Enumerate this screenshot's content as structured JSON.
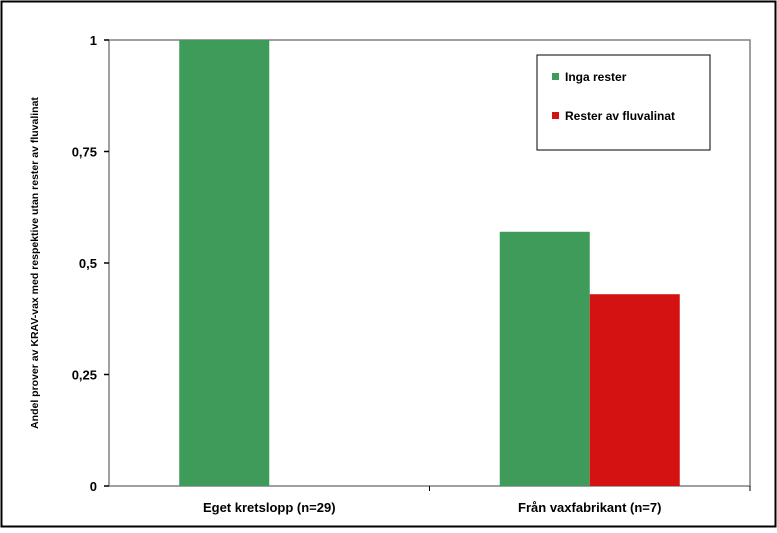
{
  "chart_data": {
    "type": "bar",
    "categories": [
      "Eget kretslopp (n=29)",
      "Från vaxfabrikant (n=7)"
    ],
    "series": [
      {
        "name": "Inga rester",
        "values": [
          1.0,
          0.57
        ],
        "color": "#3e9b5a"
      },
      {
        "name": "Rester av fluvalinat",
        "values": [
          0.0,
          0.43
        ],
        "color": "#d41212"
      }
    ],
    "ylabel": "Andel prover av KRAV-vax med respektive utan rester av fluvalinat",
    "xlabel": "",
    "title": "",
    "yticks": [
      {
        "value": 0,
        "label": "0"
      },
      {
        "value": 0.25,
        "label": "0,25"
      },
      {
        "value": 0.5,
        "label": "0,5"
      },
      {
        "value": 0.75,
        "label": "0,75"
      },
      {
        "value": 1,
        "label": "1"
      }
    ],
    "ylim": [
      0,
      1
    ],
    "grid": false,
    "legend_position": "top-right",
    "colors": {
      "frame": "#000000",
      "axis": "#808080",
      "plot_background": "#ffffff"
    }
  }
}
